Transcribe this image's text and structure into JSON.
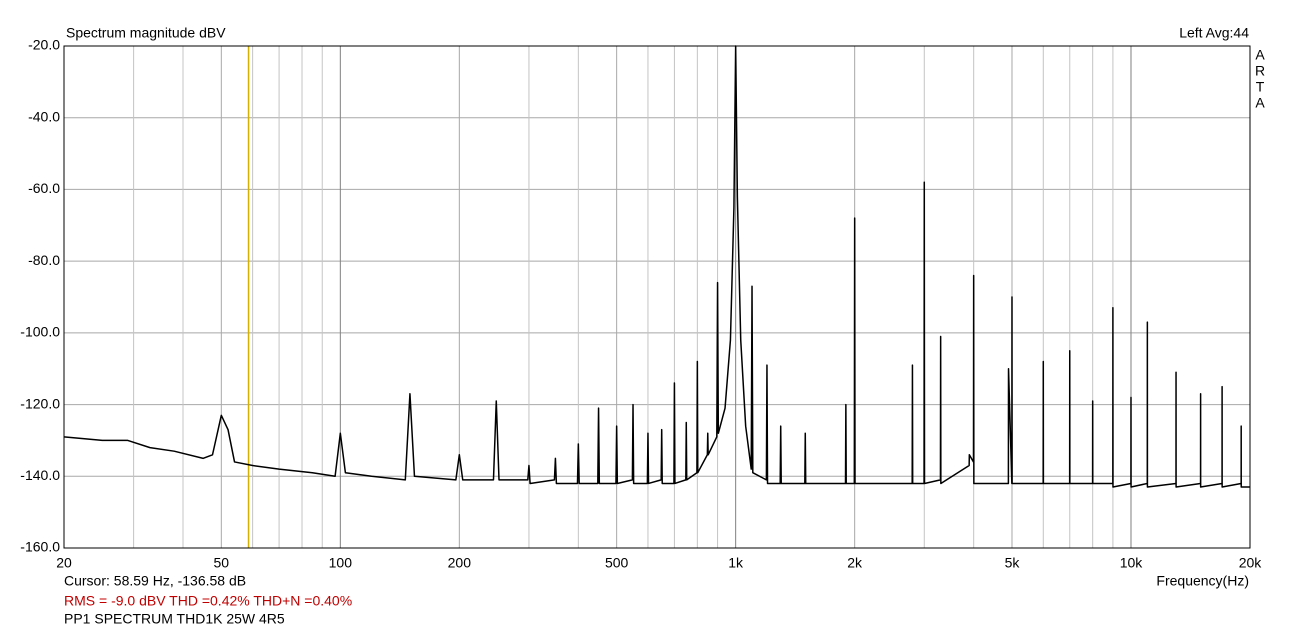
{
  "chart_data": {
    "type": "line",
    "title": "Spectrum magnitude dBV",
    "channel_label": "Left  Avg:44",
    "side_label": [
      "A",
      "R",
      "T",
      "A"
    ],
    "x_label": "Frequency(Hz)",
    "cursor_label": "Cursor: 58.59 Hz, -136.58 dB",
    "cursor_x": 58.59,
    "cursor_color": "#d4b000",
    "stats_label": "RMS =   -9.0 dBV   THD =0.42%   THD+N =0.40%",
    "footer": "PP1 SPECTRUM THD1K 25W 4R5",
    "x_scale": "log",
    "grid": true,
    "xlim": [
      20,
      20000
    ],
    "ylim": [
      -160,
      -20
    ],
    "xticks": [
      20,
      50,
      100,
      200,
      500,
      {
        "value": 1000,
        "label": "1k"
      },
      {
        "value": 2000,
        "label": "2k"
      },
      {
        "value": 5000,
        "label": "5k"
      },
      {
        "value": 10000,
        "label": "10k"
      },
      {
        "value": 20000,
        "label": "20k"
      }
    ],
    "xminorticks": [
      30,
      40,
      60,
      70,
      80,
      90,
      300,
      400,
      600,
      700,
      800,
      900,
      3000,
      4000,
      6000,
      7000,
      8000,
      9000
    ],
    "yticks": [
      {
        "value": -20,
        "label": "-20.0"
      },
      {
        "value": -40,
        "label": "-40.0"
      },
      {
        "value": -60,
        "label": "-60.0"
      },
      {
        "value": -80,
        "label": "-80.0"
      },
      {
        "value": -100,
        "label": "-100.0"
      },
      {
        "value": -120,
        "label": "-120.0"
      },
      {
        "value": -140,
        "label": "-140.0"
      },
      {
        "value": -160,
        "label": "-160.0"
      }
    ],
    "x": [
      20,
      25,
      29,
      33,
      38,
      45,
      47.5,
      50,
      52,
      54,
      60,
      70,
      85,
      97,
      100,
      103,
      120,
      146,
      150,
      154,
      196,
      200,
      204,
      244,
      248,
      252,
      298,
      300,
      302,
      348,
      350,
      352,
      398,
      400,
      402,
      448,
      450,
      452,
      498,
      500,
      502,
      548,
      550,
      552,
      598,
      600,
      602,
      648,
      650,
      652,
      698,
      700,
      702,
      748,
      750,
      752,
      798,
      800,
      802,
      848,
      850,
      852,
      896,
      900,
      904,
      940,
      970,
      990,
      1000,
      1010,
      1030,
      1060,
      1095,
      1100,
      1105,
      1196,
      1200,
      1204,
      1296,
      1300,
      1304,
      1496,
      1500,
      1504,
      1896,
      1900,
      1904,
      1996,
      2000,
      2004,
      2796,
      2800,
      2804,
      2996,
      3000,
      3004,
      3296,
      3300,
      3304,
      3896,
      3900,
      3996,
      4000,
      4004,
      4896,
      4900,
      4996,
      5000,
      5004,
      5996,
      6000,
      6004,
      6996,
      7000,
      7004,
      7996,
      8000,
      8004,
      8996,
      9000,
      9004,
      9996,
      10000,
      10004,
      10996,
      11000,
      11004,
      12996,
      13000,
      13004,
      14996,
      15000,
      15004,
      16996,
      17000,
      17004,
      18996,
      19000,
      19004,
      20000
    ],
    "series": [
      {
        "name": "Left",
        "color": "#000000",
        "values": [
          -129,
          -130,
          -130,
          -132,
          -133,
          -135,
          -134,
          -123,
          -127,
          -136,
          -137,
          -138,
          -139,
          -140,
          -128,
          -139,
          -140,
          -141,
          -117,
          -140,
          -141,
          -134,
          -141,
          -141,
          -119,
          -141,
          -141,
          -137,
          -142,
          -141,
          -135,
          -142,
          -142,
          -131,
          -142,
          -142,
          -121,
          -142,
          -142,
          -126,
          -142,
          -141,
          -120,
          -142,
          -142,
          -128,
          -142,
          -141,
          -127,
          -142,
          -142,
          -114,
          -142,
          -141,
          -125,
          -141,
          -139,
          -108,
          -139,
          -134,
          -128,
          -134,
          -129,
          -86,
          -128,
          -121,
          -102,
          -65,
          -20,
          -62,
          -102,
          -126,
          -138,
          -87,
          -139,
          -141,
          -109,
          -142,
          -142,
          -126,
          -142,
          -142,
          -128,
          -142,
          -142,
          -120,
          -142,
          -142,
          -68,
          -142,
          -142,
          -109,
          -142,
          -142,
          -58,
          -142,
          -141,
          -101,
          -142,
          -137,
          -134,
          -136,
          -84,
          -142,
          -142,
          -110,
          -142,
          -90,
          -142,
          -142,
          -108,
          -142,
          -142,
          -105,
          -142,
          -142,
          -119,
          -142,
          -142,
          -93,
          -143,
          -142,
          -118,
          -143,
          -142,
          -97,
          -143,
          -142,
          -111,
          -143,
          -142,
          -117,
          -143,
          -142,
          -115,
          -143,
          -142,
          -126,
          -143,
          -143
        ]
      }
    ]
  }
}
